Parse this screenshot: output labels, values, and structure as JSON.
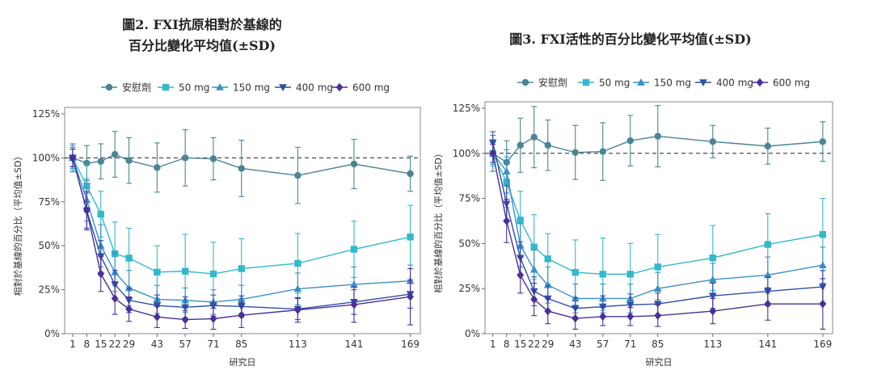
{
  "chart_data": [
    {
      "type": "line",
      "title_lines": [
        "圖2. FXI抗原相對於基線的",
        "百分比變化平均值(±SD)"
      ],
      "xlabel": "研究日",
      "ylabel": "相對於基線的百分比（平均值±SD）",
      "x": [
        1,
        8,
        15,
        22,
        29,
        43,
        57,
        71,
        85,
        113,
        141,
        169
      ],
      "x_tick_labels": [
        "1",
        "8",
        "15",
        "22",
        "29",
        "43",
        "57",
        "71",
        "85",
        "113",
        "141",
        "169"
      ],
      "y_tick_labels": [
        "0%",
        "25%",
        "50%",
        "75%",
        "100%",
        "125%"
      ],
      "ylim": [
        0,
        125
      ],
      "reference_line": 100,
      "series": [
        {
          "name": "安慰劑",
          "marker": "circle",
          "color": "#4a8594",
          "values": [
            100,
            97,
            98,
            102,
            98.5,
            94.5,
            100,
            99.5,
            94,
            90,
            96.5,
            91
          ],
          "sd": [
            8,
            10,
            10,
            13,
            13,
            14,
            16,
            12,
            16,
            16,
            14,
            10
          ]
        },
        {
          "name": "50 mg",
          "marker": "square",
          "color": "#33b8cc",
          "values": [
            100,
            84,
            68,
            45.5,
            43,
            35,
            35.5,
            34,
            37,
            40,
            48,
            55
          ],
          "sd": [
            7,
            12,
            13,
            18,
            17,
            15,
            21,
            18,
            17,
            17,
            16,
            18
          ]
        },
        {
          "name": "150 mg",
          "marker": "triangle-up",
          "color": "#3a8fc7",
          "values": [
            100,
            76,
            50,
            35,
            26,
            19.5,
            19,
            18,
            19.5,
            25.5,
            28,
            30
          ],
          "sd": [
            6,
            12,
            12,
            11,
            10,
            8,
            7,
            7,
            8,
            9,
            10,
            9
          ]
        },
        {
          "name": "400 mg",
          "marker": "triangle-down",
          "color": "#2c4fa8",
          "values": [
            100,
            70,
            44,
            28,
            19,
            16,
            15,
            16,
            15.5,
            14,
            18,
            22.5
          ],
          "sd": [
            5,
            10,
            9,
            8,
            7,
            6,
            6,
            6,
            6,
            6,
            7,
            8
          ]
        },
        {
          "name": "600 mg",
          "marker": "diamond",
          "color": "#4b2f96",
          "values": [
            100,
            70,
            34,
            20,
            14,
            9.5,
            8,
            8.5,
            10.5,
            13.5,
            16.5,
            21
          ],
          "sd": [
            5,
            11,
            10,
            9,
            7,
            6,
            5,
            6,
            7,
            7,
            10,
            16
          ]
        }
      ]
    },
    {
      "type": "line",
      "title_lines": [
        "圖3. FXI活性的百分比變化平均值(±SD)"
      ],
      "xlabel": "研究日",
      "ylabel": "相對於基線的百分比（平均值±SD）",
      "x": [
        1,
        8,
        15,
        22,
        29,
        43,
        57,
        71,
        85,
        113,
        141,
        169
      ],
      "x_tick_labels": [
        "1",
        "8",
        "15",
        "22",
        "29",
        "43",
        "57",
        "71",
        "85",
        "113",
        "141",
        "169"
      ],
      "y_tick_labels": [
        "0%",
        "25%",
        "50%",
        "75%",
        "100%",
        "125%"
      ],
      "ylim": [
        0,
        125
      ],
      "reference_line": 100,
      "series": [
        {
          "name": "安慰劑",
          "marker": "circle",
          "color": "#4a8594",
          "values": [
            100,
            95,
            104.5,
            109,
            104.5,
            100.5,
            101,
            107,
            109.5,
            106.5,
            104,
            106.5
          ],
          "sd": [
            10,
            12,
            15,
            17,
            14,
            15,
            16,
            14,
            17,
            9,
            10,
            11
          ]
        },
        {
          "name": "50 mg",
          "marker": "square",
          "color": "#33b8cc",
          "values": [
            100,
            84,
            63,
            48,
            41.5,
            34,
            33,
            33,
            37,
            42,
            49.5,
            55
          ],
          "sd": [
            7,
            14,
            16,
            18,
            14,
            18,
            20,
            17,
            18,
            18,
            17,
            20
          ]
        },
        {
          "name": "150 mg",
          "marker": "triangle-up",
          "color": "#3a8fc7",
          "values": [
            100,
            90,
            49,
            35.5,
            27,
            19.5,
            19.5,
            19.5,
            25,
            30,
            32.5,
            38
          ],
          "sd": [
            6,
            12,
            12,
            11,
            10,
            8,
            8,
            8,
            9,
            9,
            10,
            10
          ]
        },
        {
          "name": "400 mg",
          "marker": "triangle-down",
          "color": "#2c4fa8",
          "values": [
            106,
            72,
            42,
            23.5,
            19.5,
            14,
            15,
            16,
            16.5,
            21,
            23.5,
            26
          ],
          "sd": [
            6,
            10,
            9,
            8,
            7,
            6,
            6,
            6,
            6,
            7,
            8,
            9
          ]
        },
        {
          "name": "600 mg",
          "marker": "diamond",
          "color": "#4b2f96",
          "values": [
            100,
            62.5,
            32.5,
            19,
            12.5,
            8.5,
            9.5,
            9.5,
            10,
            12.5,
            16.5,
            16.5
          ],
          "sd": [
            5,
            12,
            10,
            9,
            7,
            6,
            5,
            5,
            6,
            7,
            9,
            14
          ]
        }
      ]
    }
  ]
}
